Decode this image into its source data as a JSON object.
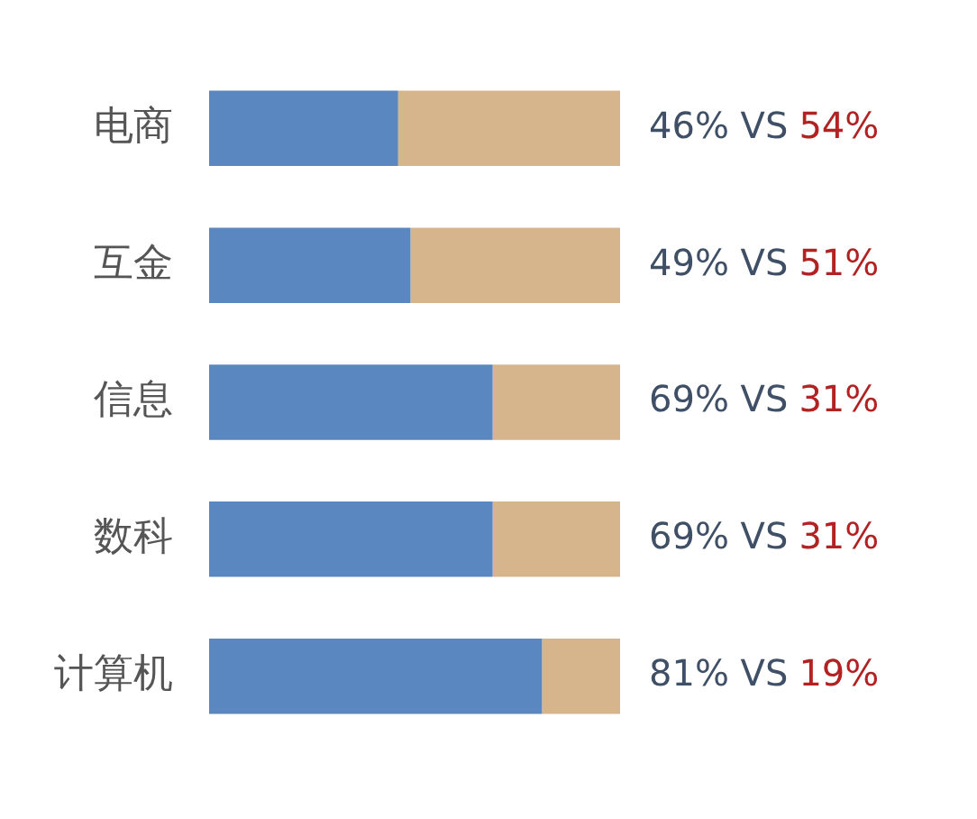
{
  "chart_data": {
    "type": "bar",
    "orientation": "horizontal",
    "stacked": true,
    "tick_labels": "y",
    "xlim": [
      0,
      100
    ],
    "categories": [
      "电商",
      "互金",
      "信息",
      "数科",
      "计算机"
    ],
    "series": [
      {
        "color": "#5b87c0",
        "values": [
          46,
          49,
          69,
          69,
          81
        ],
        "value_labels": [
          "46% VS",
          "49% VS",
          "69% VS",
          "69% VS",
          "81% VS"
        ]
      },
      {
        "color": "#d6b58c",
        "values": [
          54,
          51,
          31,
          31,
          19
        ],
        "value_labels": [
          "54%",
          "51%",
          "31%",
          "31%",
          "19%"
        ]
      }
    ]
  }
}
